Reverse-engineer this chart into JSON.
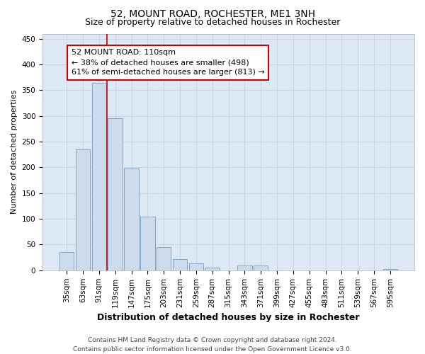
{
  "title": "52, MOUNT ROAD, ROCHESTER, ME1 3NH",
  "subtitle": "Size of property relative to detached houses in Rochester",
  "xlabel": "Distribution of detached houses by size in Rochester",
  "ylabel": "Number of detached properties",
  "categories": [
    "35sqm",
    "63sqm",
    "91sqm",
    "119sqm",
    "147sqm",
    "175sqm",
    "203sqm",
    "231sqm",
    "259sqm",
    "287sqm",
    "315sqm",
    "343sqm",
    "371sqm",
    "399sqm",
    "427sqm",
    "455sqm",
    "483sqm",
    "511sqm",
    "539sqm",
    "567sqm",
    "595sqm"
  ],
  "values": [
    35,
    235,
    365,
    295,
    198,
    105,
    45,
    22,
    14,
    5,
    0,
    9,
    9,
    0,
    0,
    0,
    0,
    0,
    0,
    0,
    2
  ],
  "bar_color": "#ccdcec",
  "bar_edge_color": "#7799bb",
  "annotation_line1": "52 MOUNT ROAD: 110sqm",
  "annotation_line2": "← 38% of detached houses are smaller (498)",
  "annotation_line3": "61% of semi-detached houses are larger (813) →",
  "annotation_box_color": "#ffffff",
  "annotation_box_edge": "#cc0000",
  "red_line_color": "#cc0000",
  "red_line_x": 2.5,
  "ylim": [
    0,
    460
  ],
  "yticks": [
    0,
    50,
    100,
    150,
    200,
    250,
    300,
    350,
    400,
    450
  ],
  "footer_line1": "Contains HM Land Registry data © Crown copyright and database right 2024.",
  "footer_line2": "Contains public sector information licensed under the Open Government Licence v3.0.",
  "bg_color": "#ffffff",
  "plot_bg_color": "#dce8f4",
  "grid_color": "#c0ccd8",
  "title_fontsize": 10,
  "subtitle_fontsize": 9,
  "xlabel_fontsize": 9,
  "ylabel_fontsize": 8,
  "tick_fontsize": 7.5,
  "annot_fontsize": 8,
  "footer_fontsize": 6.5
}
